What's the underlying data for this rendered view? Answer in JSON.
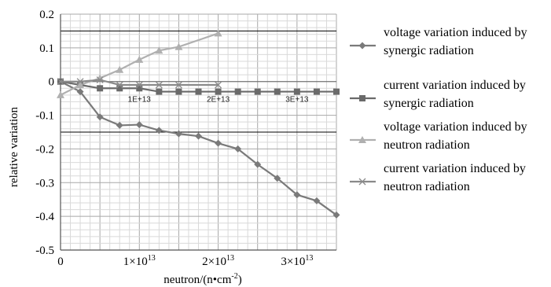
{
  "chart_data": {
    "type": "line",
    "xlabel": "neutron/(n•cm",
    "xlabel_sup": "-2",
    "xlabel_end": ")",
    "ylabel": "relative variation",
    "xlim": [
      0,
      35000000000000.0
    ],
    "ylim": [
      -0.5,
      0.2
    ],
    "y_ticks": [
      {
        "value": 0.2,
        "label": "0.2"
      },
      {
        "value": 0.1,
        "label": "0.1"
      },
      {
        "value": 0.0,
        "label": "0"
      },
      {
        "value": -0.1,
        "label": "-0.1"
      },
      {
        "value": -0.2,
        "label": "-0.2"
      },
      {
        "value": -0.3,
        "label": "-0.3"
      },
      {
        "value": -0.4,
        "label": "-0.4"
      },
      {
        "value": -0.5,
        "label": "-0.5"
      }
    ],
    "x_ticks": [
      {
        "value": 0,
        "label": "0",
        "sup": ""
      },
      {
        "value": 10000000000000.0,
        "label": "1×10",
        "sup": "13"
      },
      {
        "value": 20000000000000.0,
        "label": "2×10",
        "sup": "13"
      },
      {
        "value": 30000000000000.0,
        "label": "3×10",
        "sup": "13"
      }
    ],
    "inner_x_ticks": [
      {
        "value": 10000000000000.0,
        "label": "1E+13"
      },
      {
        "value": 20000000000000.0,
        "label": "2E+13"
      },
      {
        "value": 30000000000000.0,
        "label": "3E+13"
      }
    ],
    "grid": true,
    "reference_lines_y": [
      0.15,
      -0.15
    ],
    "series": [
      {
        "name": "voltage variation induced by synergic radiation",
        "name_lines": [
          "voltage variation induced by",
          "synergic radiation"
        ],
        "marker": "diamond",
        "color": "#7a7a7a",
        "x": [
          0,
          2500000000000.0,
          5000000000000.0,
          7500000000000.0,
          10000000000000.0,
          12500000000000.0,
          15000000000000.0,
          17500000000000.0,
          20000000000000.0,
          22500000000000.0,
          25000000000000.0,
          27500000000000.0,
          30000000000000.0,
          32500000000000.0,
          35000000000000.0
        ],
        "y": [
          0.0,
          -0.03,
          -0.105,
          -0.13,
          -0.128,
          -0.145,
          -0.155,
          -0.162,
          -0.183,
          -0.2,
          -0.246,
          -0.287,
          -0.336,
          -0.354,
          -0.396
        ]
      },
      {
        "name": "current variation induced by synergic radiation",
        "name_lines": [
          "current variation induced by",
          "synergic radiation"
        ],
        "marker": "square",
        "color": "#6a6a6a",
        "x": [
          0,
          2500000000000.0,
          5000000000000.0,
          7500000000000.0,
          10000000000000.0,
          12500000000000.0,
          15000000000000.0,
          17500000000000.0,
          20000000000000.0,
          22500000000000.0,
          25000000000000.0,
          27500000000000.0,
          30000000000000.0,
          32500000000000.0,
          35000000000000.0
        ],
        "y": [
          0.0,
          -0.01,
          -0.02,
          -0.02,
          -0.02,
          -0.03,
          -0.03,
          -0.03,
          -0.03,
          -0.03,
          -0.03,
          -0.03,
          -0.03,
          -0.03,
          -0.03
        ]
      },
      {
        "name": "voltage variation induced by neutron radiation",
        "name_lines": [
          "voltage variation induced by",
          "neutron radiation"
        ],
        "marker": "triangle",
        "color": "#b0b0b0",
        "x": [
          0,
          2500000000000.0,
          5000000000000.0,
          7500000000000.0,
          10000000000000.0,
          12500000000000.0,
          15000000000000.0,
          20000000000000.0
        ],
        "y": [
          -0.04,
          -0.01,
          0.01,
          0.035,
          0.065,
          0.092,
          0.103,
          0.143
        ]
      },
      {
        "name": "current variation induced by neutron radiation",
        "name_lines": [
          "current variation induced by",
          "neutron radiation"
        ],
        "marker": "x",
        "color": "#8a8a8a",
        "x": [
          0,
          2500000000000.0,
          5000000000000.0,
          7500000000000.0,
          10000000000000.0,
          12500000000000.0,
          15000000000000.0,
          20000000000000.0
        ],
        "y": [
          0.0,
          0.0,
          0.005,
          -0.01,
          -0.01,
          -0.01,
          -0.01,
          -0.01
        ]
      }
    ]
  }
}
